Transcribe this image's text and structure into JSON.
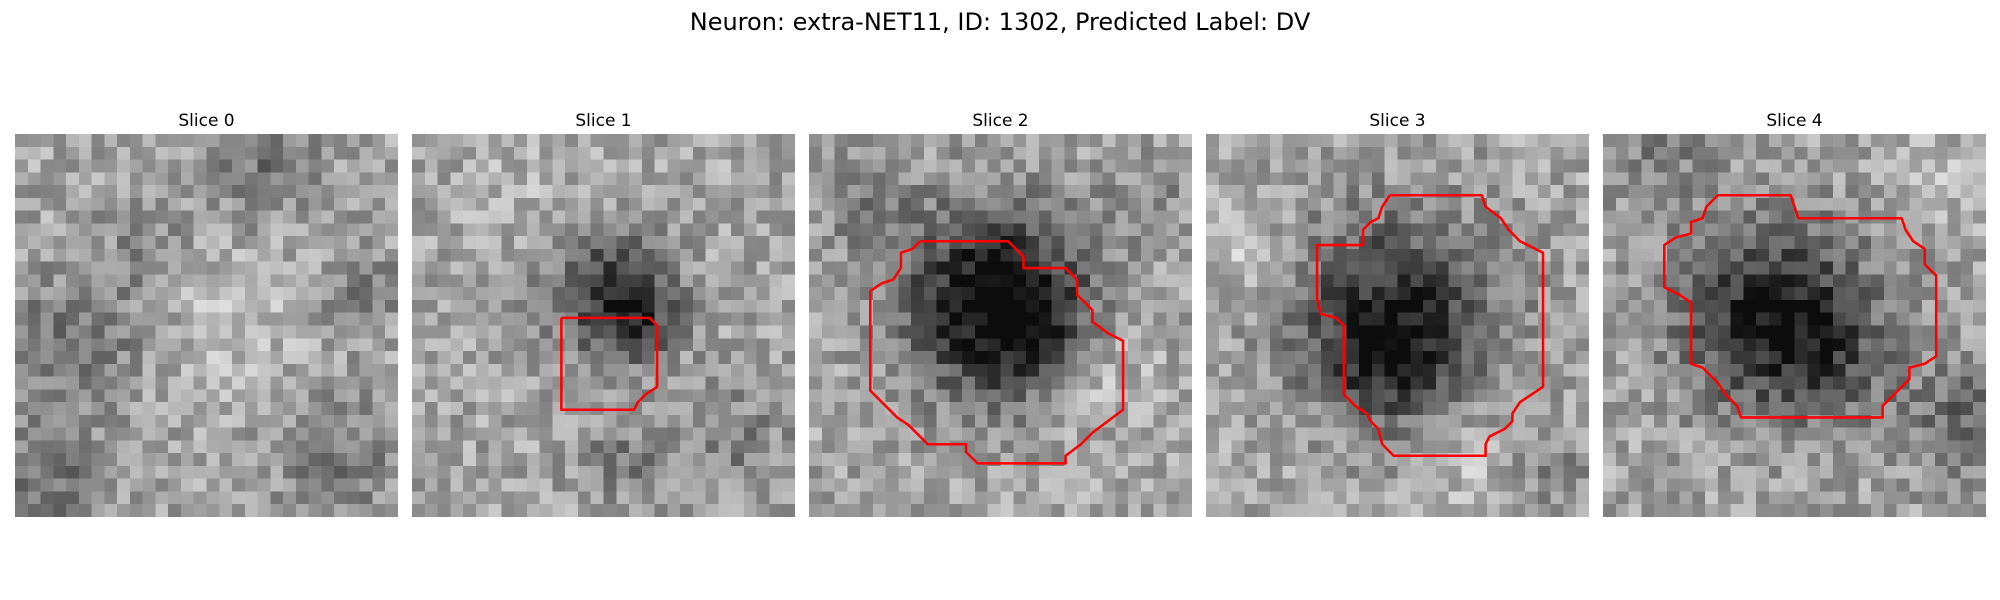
{
  "figure": {
    "title": "Neuron: extra-NET11, ID: 1302, Predicted Label: DV"
  },
  "panels": [
    {
      "title": "Slice 0",
      "seed": 11,
      "has_contour": false,
      "blobs": [
        [
          0.15,
          0.55,
          0.12,
          -60
        ],
        [
          0.65,
          0.1,
          0.1,
          -50
        ],
        [
          0.1,
          0.9,
          0.1,
          -55
        ],
        [
          0.85,
          0.85,
          0.12,
          -40
        ],
        [
          0.55,
          0.45,
          0.15,
          25
        ],
        [
          0.35,
          0.3,
          0.1,
          -30
        ],
        [
          0.9,
          0.4,
          0.08,
          -35
        ]
      ]
    },
    {
      "title": "Slice 1",
      "seed": 23,
      "has_contour": true,
      "blobs": [
        [
          0.52,
          0.42,
          0.11,
          -110
        ],
        [
          0.6,
          0.5,
          0.07,
          -60
        ],
        [
          0.3,
          0.15,
          0.1,
          15
        ],
        [
          0.85,
          0.8,
          0.1,
          -35
        ],
        [
          0.55,
          0.85,
          0.08,
          -40
        ]
      ],
      "contour": [
        [
          0.39,
          0.48
        ],
        [
          0.62,
          0.48
        ],
        [
          0.64,
          0.5
        ],
        [
          0.64,
          0.66
        ],
        [
          0.61,
          0.68
        ],
        [
          0.59,
          0.7
        ],
        [
          0.58,
          0.72
        ],
        [
          0.39,
          0.72
        ],
        [
          0.39,
          0.48
        ]
      ]
    },
    {
      "title": "Slice 2",
      "seed": 37,
      "has_contour": true,
      "blobs": [
        [
          0.47,
          0.42,
          0.16,
          -150
        ],
        [
          0.62,
          0.48,
          0.1,
          -60
        ],
        [
          0.5,
          0.62,
          0.12,
          -30
        ],
        [
          0.15,
          0.2,
          0.1,
          -30
        ],
        [
          0.9,
          0.15,
          0.1,
          -25
        ],
        [
          0.75,
          0.6,
          0.1,
          35
        ]
      ],
      "contour": [
        [
          0.29,
          0.28
        ],
        [
          0.52,
          0.28
        ],
        [
          0.56,
          0.32
        ],
        [
          0.56,
          0.35
        ],
        [
          0.67,
          0.35
        ],
        [
          0.7,
          0.38
        ],
        [
          0.7,
          0.42
        ],
        [
          0.74,
          0.46
        ],
        [
          0.74,
          0.49
        ],
        [
          0.78,
          0.52
        ],
        [
          0.82,
          0.54
        ],
        [
          0.82,
          0.72
        ],
        [
          0.78,
          0.75
        ],
        [
          0.74,
          0.78
        ],
        [
          0.71,
          0.81
        ],
        [
          0.67,
          0.84
        ],
        [
          0.67,
          0.86
        ],
        [
          0.44,
          0.86
        ],
        [
          0.41,
          0.83
        ],
        [
          0.41,
          0.81
        ],
        [
          0.31,
          0.81
        ],
        [
          0.26,
          0.76
        ],
        [
          0.23,
          0.74
        ],
        [
          0.21,
          0.72
        ],
        [
          0.16,
          0.67
        ],
        [
          0.16,
          0.41
        ],
        [
          0.19,
          0.39
        ],
        [
          0.22,
          0.38
        ],
        [
          0.24,
          0.35
        ],
        [
          0.24,
          0.31
        ],
        [
          0.27,
          0.3
        ],
        [
          0.29,
          0.28
        ]
      ]
    },
    {
      "title": "Slice 3",
      "seed": 51,
      "has_contour": true,
      "blobs": [
        [
          0.5,
          0.48,
          0.18,
          -130
        ],
        [
          0.45,
          0.6,
          0.1,
          -50
        ],
        [
          0.1,
          0.3,
          0.08,
          35
        ],
        [
          0.9,
          0.9,
          0.1,
          -30
        ],
        [
          0.7,
          0.85,
          0.1,
          30
        ]
      ],
      "contour": [
        [
          0.48,
          0.16
        ],
        [
          0.72,
          0.16
        ],
        [
          0.73,
          0.19
        ],
        [
          0.77,
          0.22
        ],
        [
          0.79,
          0.25
        ],
        [
          0.82,
          0.28
        ],
        [
          0.88,
          0.31
        ],
        [
          0.88,
          0.66
        ],
        [
          0.82,
          0.7
        ],
        [
          0.8,
          0.73
        ],
        [
          0.8,
          0.75
        ],
        [
          0.78,
          0.77
        ],
        [
          0.74,
          0.79
        ],
        [
          0.73,
          0.81
        ],
        [
          0.73,
          0.84
        ],
        [
          0.49,
          0.84
        ],
        [
          0.46,
          0.81
        ],
        [
          0.45,
          0.77
        ],
        [
          0.43,
          0.75
        ],
        [
          0.42,
          0.73
        ],
        [
          0.39,
          0.71
        ],
        [
          0.36,
          0.68
        ],
        [
          0.36,
          0.5
        ],
        [
          0.34,
          0.48
        ],
        [
          0.3,
          0.47
        ],
        [
          0.29,
          0.43
        ],
        [
          0.29,
          0.29
        ],
        [
          0.41,
          0.29
        ],
        [
          0.41,
          0.25
        ],
        [
          0.43,
          0.23
        ],
        [
          0.45,
          0.22
        ],
        [
          0.46,
          0.19
        ],
        [
          0.48,
          0.16
        ]
      ]
    },
    {
      "title": "Slice 4",
      "seed": 67,
      "has_contour": true,
      "blobs": [
        [
          0.45,
          0.48,
          0.17,
          -140
        ],
        [
          0.95,
          0.75,
          0.12,
          -60
        ],
        [
          0.15,
          0.08,
          0.1,
          -35
        ],
        [
          0.85,
          0.1,
          0.08,
          25
        ],
        [
          0.6,
          0.6,
          0.1,
          -40
        ]
      ],
      "contour": [
        [
          0.3,
          0.16
        ],
        [
          0.49,
          0.16
        ],
        [
          0.5,
          0.19
        ],
        [
          0.51,
          0.22
        ],
        [
          0.78,
          0.22
        ],
        [
          0.79,
          0.25
        ],
        [
          0.81,
          0.28
        ],
        [
          0.84,
          0.3
        ],
        [
          0.84,
          0.34
        ],
        [
          0.87,
          0.37
        ],
        [
          0.87,
          0.58
        ],
        [
          0.84,
          0.6
        ],
        [
          0.8,
          0.61
        ],
        [
          0.8,
          0.64
        ],
        [
          0.76,
          0.68
        ],
        [
          0.73,
          0.71
        ],
        [
          0.73,
          0.74
        ],
        [
          0.36,
          0.74
        ],
        [
          0.35,
          0.71
        ],
        [
          0.32,
          0.68
        ],
        [
          0.3,
          0.65
        ],
        [
          0.26,
          0.61
        ],
        [
          0.23,
          0.6
        ],
        [
          0.23,
          0.44
        ],
        [
          0.2,
          0.42
        ],
        [
          0.16,
          0.4
        ],
        [
          0.16,
          0.29
        ],
        [
          0.19,
          0.27
        ],
        [
          0.23,
          0.26
        ],
        [
          0.23,
          0.23
        ],
        [
          0.26,
          0.22
        ],
        [
          0.27,
          0.19
        ],
        [
          0.3,
          0.16
        ]
      ]
    }
  ],
  "colors": {
    "contour": "#ff0000",
    "background": "#ffffff"
  }
}
